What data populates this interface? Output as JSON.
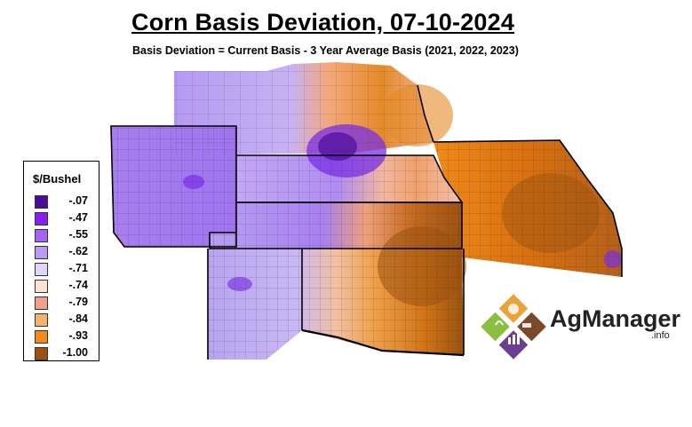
{
  "header": {
    "title": "Corn Basis Deviation, 07-10-2024",
    "subtitle": "Basis Deviation = Current Basis - 3 Year Average Basis (2021, 2022, 2023)"
  },
  "legend": {
    "title": "$/Bushel",
    "items": [
      {
        "label": "-.07",
        "color": "#4b0a9e"
      },
      {
        "label": "-.47",
        "color": "#8a1ef0"
      },
      {
        "label": "-.55",
        "color": "#a565f2"
      },
      {
        "label": "-.62",
        "color": "#b99af4"
      },
      {
        "label": "-.71",
        "color": "#e2d4f8"
      },
      {
        "label": "-.74",
        "color": "#fbe2d4"
      },
      {
        "label": "-.79",
        "color": "#f2a08c"
      },
      {
        "label": "-.84",
        "color": "#f6b070"
      },
      {
        "label": "-.93",
        "color": "#f08a18"
      },
      {
        "label": "-1.00",
        "color": "#9a5210"
      }
    ]
  },
  "logo": {
    "brand": "AgManager",
    "suffix": ".info",
    "colors": {
      "orange": "#e8a33a",
      "green": "#8cbf3f",
      "brown": "#7a4a2a",
      "purple": "#6b3f8f"
    }
  }
}
